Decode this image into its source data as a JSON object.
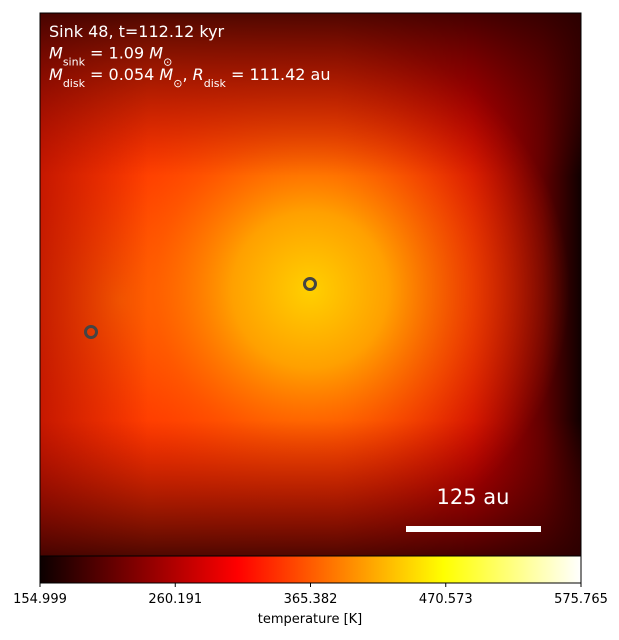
{
  "chart_data": {
    "type": "heatmap",
    "annotations": [
      [
        {
          "text": "Sink 48, t=112.12 kyr"
        }
      ],
      [
        {
          "text": "M"
        },
        {
          "sub": "sink"
        },
        {
          "text": " = 1.09 "
        },
        {
          "text": "M"
        },
        {
          "sub": "⊙"
        }
      ],
      [
        {
          "text": "M"
        },
        {
          "sub": "disk"
        },
        {
          "text": " = 0.054 "
        },
        {
          "text": "M"
        },
        {
          "sub": "⊙"
        },
        {
          "text": ", "
        },
        {
          "text": "R"
        },
        {
          "sub": "disk"
        },
        {
          "text": " = 111.42 au"
        }
      ]
    ],
    "scale_bar": "125 au",
    "colormap": "hot",
    "colorbar": {
      "label": "temperature [K]",
      "lim": [
        154.999,
        575.765
      ],
      "ticks": [
        154.999,
        260.191,
        365.382,
        470.573,
        575.765
      ]
    }
  }
}
